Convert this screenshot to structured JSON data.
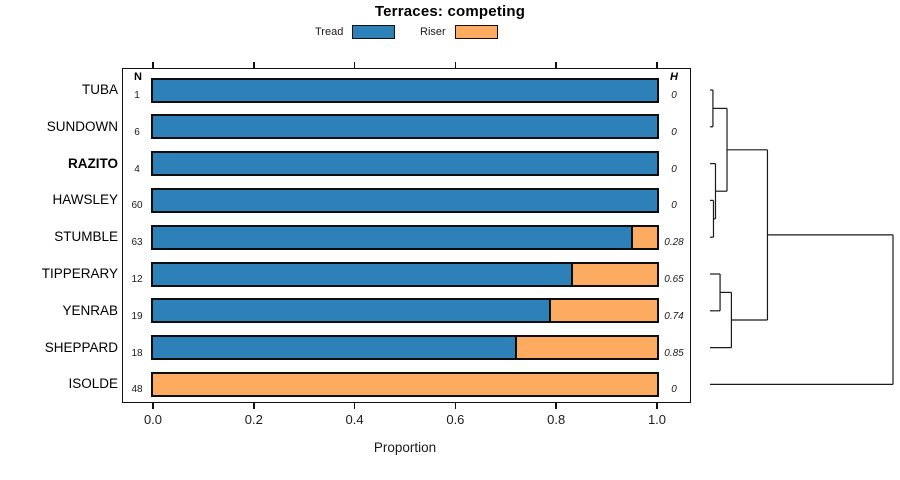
{
  "title": "Terraces: competing",
  "legend": {
    "items": [
      {
        "label": "Tread",
        "color": "#2E80B8"
      },
      {
        "label": "Riser",
        "color": "#FCAB60"
      }
    ]
  },
  "columns": {
    "n_header": "N",
    "h_header": "H"
  },
  "x_axis": {
    "label": "Proportion",
    "tick_labels": [
      "0.0",
      "0.2",
      "0.4",
      "0.6",
      "0.8",
      "1.0"
    ],
    "tick_values": [
      0,
      0.2,
      0.4,
      0.6,
      0.8,
      1.0
    ]
  },
  "chart_data": {
    "type": "bar",
    "orientation": "horizontal",
    "stacked": true,
    "title": "Terraces: competing",
    "xlabel": "Proportion",
    "xlim": [
      0,
      1
    ],
    "grid": false,
    "legend_position": "top",
    "series": [
      {
        "name": "Tread",
        "color": "#2E80B8"
      },
      {
        "name": "Riser",
        "color": "#FCAB60"
      }
    ],
    "rows": [
      {
        "label": "TUBA",
        "bold": false,
        "n": "1",
        "tread": 1.0,
        "riser": 0.0,
        "h": "0"
      },
      {
        "label": "SUNDOWN",
        "bold": false,
        "n": "6",
        "tread": 1.0,
        "riser": 0.0,
        "h": "0"
      },
      {
        "label": "RAZITO",
        "bold": true,
        "n": "4",
        "tread": 1.0,
        "riser": 0.0,
        "h": "0"
      },
      {
        "label": "HAWSLEY",
        "bold": false,
        "n": "60",
        "tread": 1.0,
        "riser": 0.0,
        "h": "0"
      },
      {
        "label": "STUMBLE",
        "bold": false,
        "n": "63",
        "tread": 0.952,
        "riser": 0.048,
        "h": "0.28"
      },
      {
        "label": "TIPPERARY",
        "bold": false,
        "n": "12",
        "tread": 0.833,
        "riser": 0.167,
        "h": "0.65"
      },
      {
        "label": "YENRAB",
        "bold": false,
        "n": "19",
        "tread": 0.789,
        "riser": 0.211,
        "h": "0.74"
      },
      {
        "label": "SHEPPARD",
        "bold": false,
        "n": "18",
        "tread": 0.722,
        "riser": 0.278,
        "h": "0.85"
      },
      {
        "label": "ISOLDE",
        "bold": false,
        "n": "48",
        "tread": 0.0,
        "riser": 1.0,
        "h": "0"
      }
    ],
    "dendrogram": {
      "merges": [
        {
          "id": "m1",
          "a": "TUBA",
          "b": "SUNDOWN",
          "height": 0.016
        },
        {
          "id": "m2",
          "a": "HAWSLEY",
          "b": "STUMBLE",
          "height": 0.019
        },
        {
          "id": "m3",
          "a": "RAZITO",
          "b": "m2",
          "height": 0.03
        },
        {
          "id": "m4",
          "a": "TIPPERARY",
          "b": "YENRAB",
          "height": 0.055
        },
        {
          "id": "m5",
          "a": "m4",
          "b": "SHEPPARD",
          "height": 0.117
        },
        {
          "id": "m6",
          "a": "m1",
          "b": "m3",
          "height": 0.093
        },
        {
          "id": "m7",
          "a": "m6",
          "b": "m5",
          "height": 0.314
        },
        {
          "id": "m8",
          "a": "m7",
          "b": "ISOLDE",
          "height": 1.0
        }
      ]
    }
  }
}
